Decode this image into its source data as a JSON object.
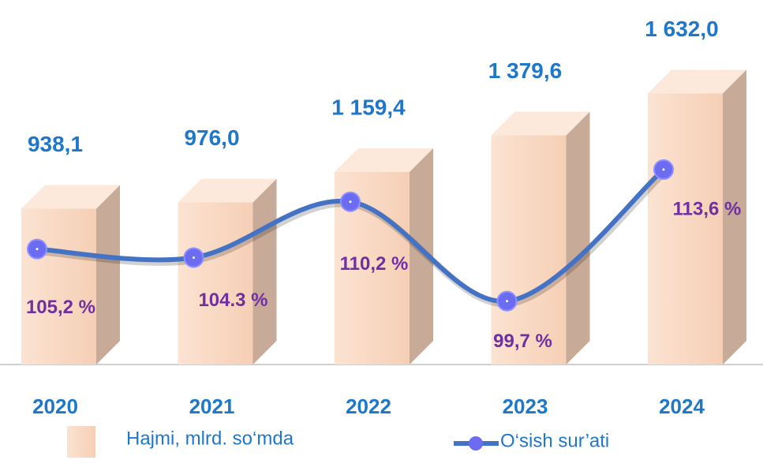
{
  "chart_data": {
    "type": "bar",
    "categories": [
      "2020",
      "2021",
      "2022",
      "2023",
      "2024"
    ],
    "ylim": [
      0,
      1800
    ],
    "y2lim": [
      93,
      124.6
    ],
    "series": [
      {
        "name": "Hajmi, mlrd. so‘mda",
        "type": "bar",
        "color": "#f9d5bd",
        "values": [
          938.1,
          976.0,
          1159.4,
          1379.6,
          1632.0
        ],
        "value_labels": [
          "938,1",
          "976,0",
          "1 159,4",
          "1 379,6",
          "1 632,0"
        ]
      },
      {
        "name": "O‘sish sur’ati",
        "type": "line",
        "axis": "y2",
        "color": "#4472c4",
        "values": [
          105.2,
          104.3,
          110.2,
          99.7,
          113.6
        ],
        "value_labels": [
          "105,2 %",
          "104.3 %",
          "110,2 %",
          "99,7 %",
          "113,6 %"
        ]
      }
    ]
  }
}
